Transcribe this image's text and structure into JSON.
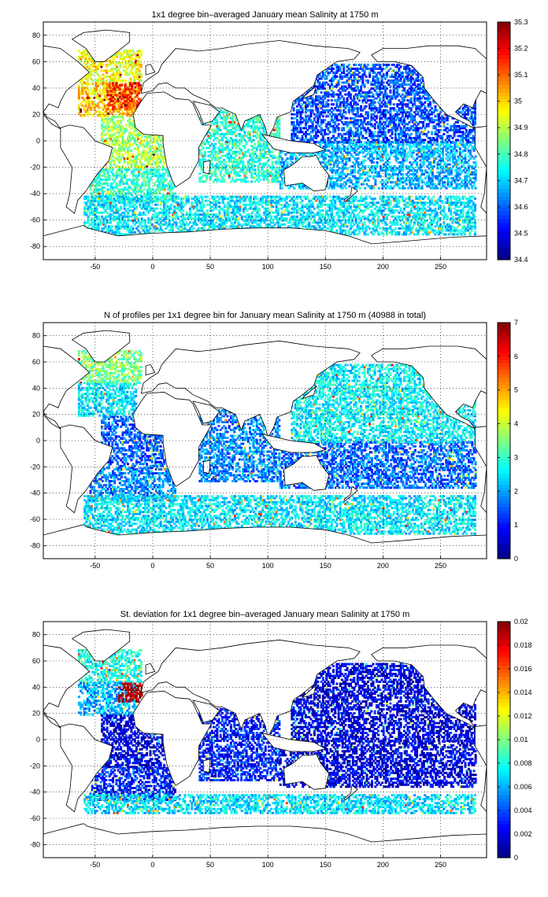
{
  "chart_data": [
    {
      "type": "heatmap",
      "title": "1x1 degree bin–averaged January mean Salinity at 1750 m",
      "xlim": [
        -95,
        290
      ],
      "ylim": [
        -90,
        90
      ],
      "xticks": [
        "-50",
        "0",
        "50",
        "100",
        "150",
        "200",
        "250"
      ],
      "yticks": [
        "80",
        "60",
        "40",
        "20",
        "0",
        "-20",
        "-40",
        "-60",
        "-80"
      ],
      "colorbar": {
        "ticks": [
          "35.3",
          "35.2",
          "35.1",
          "35",
          "34.9",
          "34.8",
          "34.7",
          "34.6",
          "34.5",
          "34.4"
        ],
        "range": [
          34.4,
          35.3
        ]
      },
      "grid": "dotted",
      "colormap": "jet",
      "regions": [
        {
          "x": [
            -65,
            -10
          ],
          "y": [
            45,
            70
          ],
          "value": 34.95
        },
        {
          "x": [
            -65,
            -15
          ],
          "y": [
            20,
            45
          ],
          "value": 35.0
        },
        {
          "x": [
            -40,
            -10
          ],
          "y": [
            25,
            45
          ],
          "value": 35.15
        },
        {
          "x": [
            -45,
            10
          ],
          "y": [
            -20,
            20
          ],
          "value": 34.88
        },
        {
          "x": [
            -55,
            20
          ],
          "y": [
            -45,
            -20
          ],
          "value": 34.78
        },
        {
          "x": [
            40,
            110
          ],
          "y": [
            -30,
            25
          ],
          "value": 34.77
        },
        {
          "x": [
            -60,
            280
          ],
          "y": [
            -70,
            -40
          ],
          "value": 34.72
        },
        {
          "x": [
            110,
            280
          ],
          "y": [
            -35,
            0
          ],
          "value": 34.67
        },
        {
          "x": [
            120,
            280
          ],
          "y": [
            0,
            60
          ],
          "value": 34.58
        }
      ]
    },
    {
      "type": "heatmap",
      "title": "N of profiles per 1x1 degree bin for January mean Salinity at 1750 m (40988 in total)",
      "xlim": [
        -95,
        290
      ],
      "ylim": [
        -90,
        90
      ],
      "xticks": [
        "-50",
        "0",
        "50",
        "100",
        "150",
        "200",
        "250"
      ],
      "yticks": [
        "80",
        "60",
        "40",
        "20",
        "0",
        "-20",
        "-40",
        "-60",
        "-80"
      ],
      "colorbar": {
        "ticks": [
          "7",
          "6",
          "5",
          "4",
          "3",
          "2",
          "1",
          "0"
        ],
        "range": [
          0,
          7
        ]
      },
      "grid": "dotted",
      "colormap": "jet",
      "regions": [
        {
          "x": [
            -65,
            -10
          ],
          "y": [
            45,
            70
          ],
          "value": 3.5
        },
        {
          "x": [
            -65,
            -15
          ],
          "y": [
            20,
            45
          ],
          "value": 2.5
        },
        {
          "x": [
            -45,
            10
          ],
          "y": [
            -20,
            20
          ],
          "value": 1.5
        },
        {
          "x": [
            -55,
            20
          ],
          "y": [
            -45,
            -20
          ],
          "value": 1.8
        },
        {
          "x": [
            40,
            110
          ],
          "y": [
            -30,
            25
          ],
          "value": 1.8
        },
        {
          "x": [
            -60,
            280
          ],
          "y": [
            -70,
            -40
          ],
          "value": 2.5
        },
        {
          "x": [
            110,
            280
          ],
          "y": [
            -35,
            0
          ],
          "value": 1.6
        },
        {
          "x": [
            120,
            280
          ],
          "y": [
            0,
            60
          ],
          "value": 2.6
        }
      ]
    },
    {
      "type": "heatmap",
      "title": "St. deviation for 1x1 degree bin–averaged January mean Salinity at 1750 m",
      "xlim": [
        -95,
        290
      ],
      "ylim": [
        -90,
        90
      ],
      "xticks": [
        "-50",
        "0",
        "50",
        "100",
        "150",
        "200",
        "250"
      ],
      "yticks": [
        "80",
        "60",
        "40",
        "20",
        "0",
        "-20",
        "-40",
        "-60",
        "-80"
      ],
      "colorbar": {
        "ticks": [
          "0.02",
          "0.018",
          "0.016",
          "0.014",
          "0.012",
          "0.01",
          "0.008",
          "0.006",
          "0.004",
          "0.002",
          "0"
        ],
        "range": [
          0,
          0.02
        ]
      },
      "grid": "dotted",
      "colormap": "jet",
      "regions": [
        {
          "x": [
            -65,
            -10
          ],
          "y": [
            45,
            70
          ],
          "value": 0.008
        },
        {
          "x": [
            -65,
            -15
          ],
          "y": [
            20,
            45
          ],
          "value": 0.006
        },
        {
          "x": [
            -30,
            -10
          ],
          "y": [
            30,
            45
          ],
          "value": 0.019
        },
        {
          "x": [
            -45,
            10
          ],
          "y": [
            -20,
            20
          ],
          "value": 0.002
        },
        {
          "x": [
            -55,
            20
          ],
          "y": [
            -45,
            -20
          ],
          "value": 0.003
        },
        {
          "x": [
            40,
            110
          ],
          "y": [
            -30,
            25
          ],
          "value": 0.003
        },
        {
          "x": [
            -60,
            280
          ],
          "y": [
            -55,
            -40
          ],
          "value": 0.007
        },
        {
          "x": [
            110,
            280
          ],
          "y": [
            -35,
            0
          ],
          "value": 0.002
        },
        {
          "x": [
            120,
            280
          ],
          "y": [
            0,
            60
          ],
          "value": 0.002
        }
      ]
    }
  ]
}
